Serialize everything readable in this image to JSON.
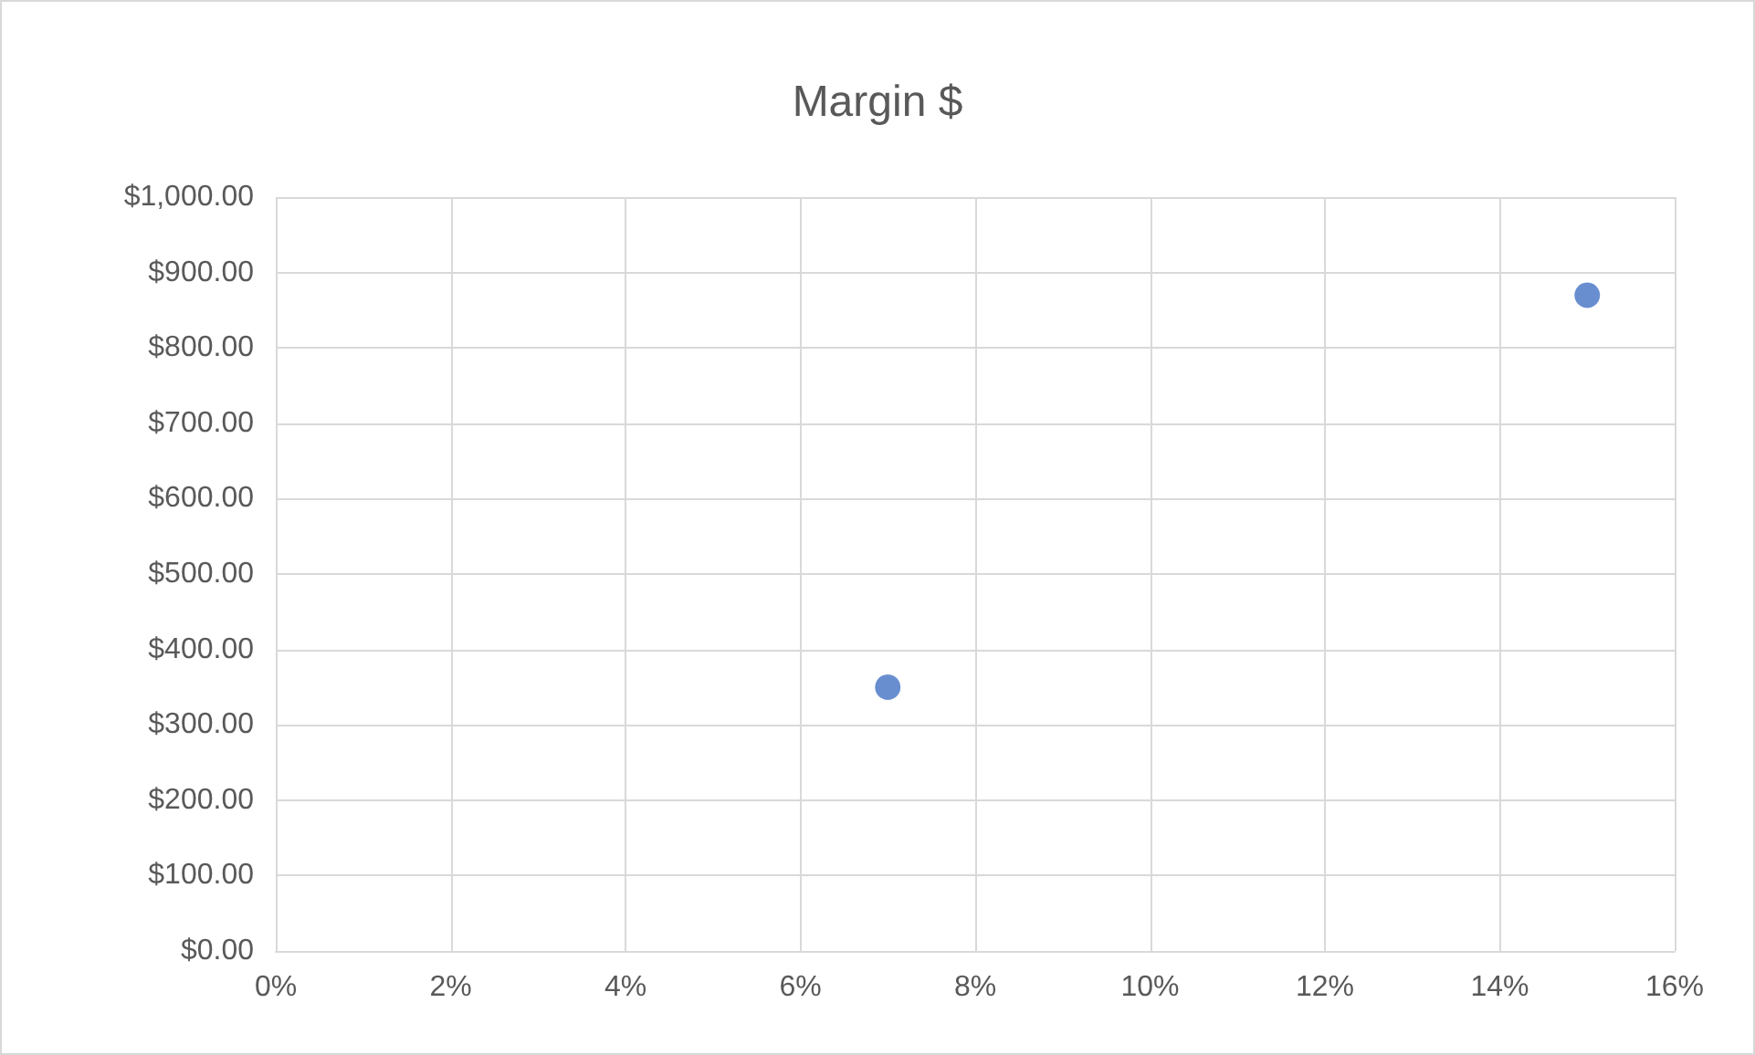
{
  "chart_data": {
    "type": "scatter",
    "title": "Margin $",
    "x": [
      7,
      15
    ],
    "values": [
      350,
      870
    ],
    "color": "#4472c4",
    "marker": "circle",
    "xlim": [
      0,
      16
    ],
    "xticks": [
      {
        "value": 0,
        "label": "0%"
      },
      {
        "value": 2,
        "label": "2%"
      },
      {
        "value": 4,
        "label": "4%"
      },
      {
        "value": 6,
        "label": "6%"
      },
      {
        "value": 8,
        "label": "8%"
      },
      {
        "value": 10,
        "label": "10%"
      },
      {
        "value": 12,
        "label": "12%"
      },
      {
        "value": 14,
        "label": "14%"
      },
      {
        "value": 16,
        "label": "16%"
      }
    ],
    "ylim": [
      0,
      1000
    ],
    "yticks": [
      {
        "value": 0,
        "label": "$0.00"
      },
      {
        "value": 100,
        "label": "$100.00"
      },
      {
        "value": 200,
        "label": "$200.00"
      },
      {
        "value": 300,
        "label": "$300.00"
      },
      {
        "value": 400,
        "label": "$400.00"
      },
      {
        "value": 500,
        "label": "$500.00"
      },
      {
        "value": 600,
        "label": "$600.00"
      },
      {
        "value": 700,
        "label": "$700.00"
      },
      {
        "value": 800,
        "label": "$800.00"
      },
      {
        "value": 900,
        "label": "$900.00"
      },
      {
        "value": 1000,
        "label": "$1,000.00"
      }
    ],
    "grid": true
  }
}
